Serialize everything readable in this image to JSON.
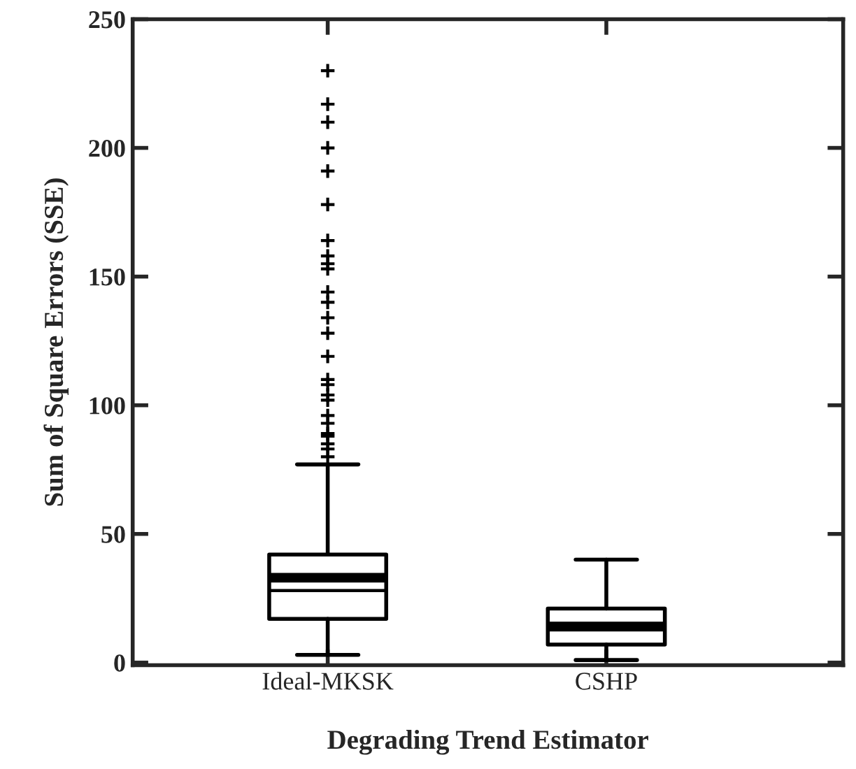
{
  "chart_data": {
    "type": "box",
    "xlabel": "Degrading Trend Estimator",
    "ylabel": "Sum of Square Errors (SSE)",
    "categories": [
      "Ideal-MKSK",
      "CSHP"
    ],
    "boxes": [
      {
        "low": 3,
        "q1": 17,
        "median": 28,
        "q3": 42,
        "high": 77,
        "mean": 33,
        "outliers": [
          80,
          83,
          85,
          88,
          89,
          93,
          96,
          102,
          104,
          108,
          110,
          119,
          128,
          134,
          140,
          144,
          153,
          155,
          158,
          164,
          178,
          191,
          200,
          210,
          217,
          230
        ]
      },
      {
        "low": 1,
        "q1": 7,
        "median": 13,
        "q3": 21,
        "high": 40,
        "mean": 14
      }
    ],
    "ylim": [
      -1,
      250
    ],
    "yticks": [
      0,
      50,
      100,
      150,
      200,
      250
    ],
    "grid": false,
    "legend": false
  }
}
